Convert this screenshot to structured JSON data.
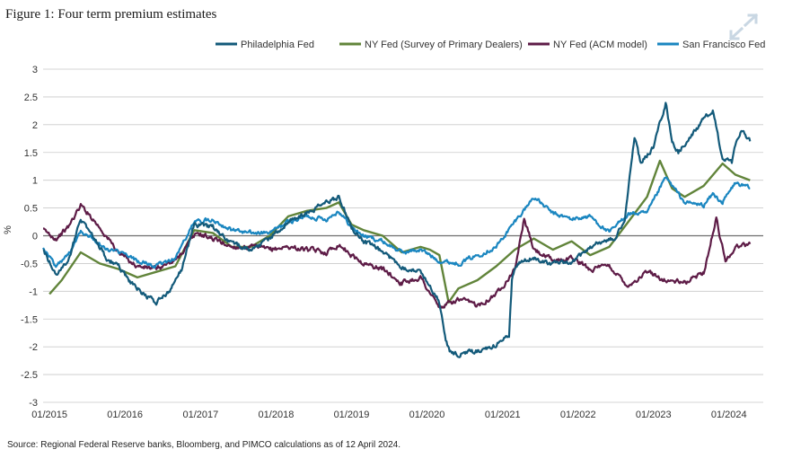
{
  "figure": {
    "title": "Figure 1: Four term premium estimates",
    "source": "Source: Regional Federal Reserve banks, Bloomberg, and PIMCO calculations as of 12 April 2024."
  },
  "icons": {
    "expand": "expand-arrows-icon"
  },
  "colors": {
    "philadelphia": "#135a7a",
    "nysurvey": "#61843a",
    "acm": "#5e1c47",
    "sf": "#1a86c0",
    "grid": "#c9c9c9",
    "zero": "#6e6e6e"
  },
  "chart_data": {
    "type": "line",
    "title": "Figure 1: Four term premium estimates",
    "xlabel": "",
    "ylabel": "%",
    "ylim": [
      -3,
      3
    ],
    "xlim": [
      "2014-12-01",
      "2024-06-15"
    ],
    "yticks": [
      3,
      2.5,
      2,
      1.5,
      1,
      0.5,
      0,
      -0.5,
      -1,
      -1.5,
      -2,
      -2.5,
      -3
    ],
    "ytick_labels": [
      "3",
      "2.5",
      "2",
      "1.5",
      "1",
      "0.5",
      "0",
      "-0.5",
      "-1",
      "-1.5",
      "-2",
      "-2.5",
      "-3"
    ],
    "xticks": [
      "2015-01-01",
      "2016-01-01",
      "2017-01-01",
      "2018-01-01",
      "2019-01-01",
      "2020-01-01",
      "2021-01-01",
      "2022-01-01",
      "2023-01-01",
      "2024-01-01"
    ],
    "xtick_labels": [
      "01/2015",
      "01/2016",
      "01/2017",
      "01/2018",
      "01/2019",
      "01/2020",
      "01/2021",
      "01/2022",
      "01/2023",
      "01/2024"
    ],
    "grid": "horizontal",
    "legend_position": "top-right",
    "series": [
      {
        "key": "philadelphia",
        "name": "Philadelphia Fed",
        "points": [
          [
            "2014-12-01",
            -0.25
          ],
          [
            "2015-02-01",
            -0.7
          ],
          [
            "2015-04-01",
            -0.45
          ],
          [
            "2015-06-01",
            0.3
          ],
          [
            "2015-08-01",
            0.0
          ],
          [
            "2015-10-01",
            -0.4
          ],
          [
            "2015-12-01",
            -0.55
          ],
          [
            "2016-02-01",
            -0.85
          ],
          [
            "2016-04-01",
            -1.05
          ],
          [
            "2016-06-01",
            -1.2
          ],
          [
            "2016-08-01",
            -1.0
          ],
          [
            "2016-10-01",
            -0.6
          ],
          [
            "2016-12-01",
            0.2
          ],
          [
            "2017-03-01",
            0.15
          ],
          [
            "2017-06-01",
            -0.15
          ],
          [
            "2017-09-01",
            -0.25
          ],
          [
            "2017-12-01",
            -0.05
          ],
          [
            "2018-03-01",
            0.25
          ],
          [
            "2018-06-01",
            0.4
          ],
          [
            "2018-09-01",
            0.6
          ],
          [
            "2018-11-01",
            0.7
          ],
          [
            "2019-01-01",
            0.15
          ],
          [
            "2019-03-01",
            -0.1
          ],
          [
            "2019-06-01",
            -0.3
          ],
          [
            "2019-09-01",
            -0.55
          ],
          [
            "2019-12-01",
            -0.65
          ],
          [
            "2020-02-01",
            -1.0
          ],
          [
            "2020-03-01",
            -1.2
          ],
          [
            "2020-04-01",
            -1.9
          ],
          [
            "2020-05-01",
            -2.15
          ],
          [
            "2020-08-01",
            -2.1
          ],
          [
            "2020-11-01",
            -2.05
          ],
          [
            "2020-12-15",
            -1.9
          ],
          [
            "2021-02-01",
            -1.8
          ],
          [
            "2021-02-15",
            -0.8
          ],
          [
            "2021-03-15",
            -0.5
          ],
          [
            "2021-06-01",
            -0.4
          ],
          [
            "2021-09-01",
            -0.5
          ],
          [
            "2021-12-01",
            -0.5
          ],
          [
            "2022-03-01",
            -0.2
          ],
          [
            "2022-05-01",
            -0.1
          ],
          [
            "2022-07-01",
            -0.05
          ],
          [
            "2022-08-15",
            0.3
          ],
          [
            "2022-10-01",
            1.8
          ],
          [
            "2022-11-01",
            1.3
          ],
          [
            "2023-01-01",
            1.6
          ],
          [
            "2023-03-01",
            2.4
          ],
          [
            "2023-04-01",
            1.7
          ],
          [
            "2023-05-01",
            1.5
          ],
          [
            "2023-07-01",
            1.8
          ],
          [
            "2023-09-01",
            2.1
          ],
          [
            "2023-10-15",
            2.25
          ],
          [
            "2023-12-01",
            1.4
          ],
          [
            "2024-01-15",
            1.3
          ],
          [
            "2024-02-01",
            1.6
          ],
          [
            "2024-03-01",
            1.9
          ],
          [
            "2024-04-12",
            1.7
          ]
        ]
      },
      {
        "key": "nysurvey",
        "name": "NY Fed (Survey of Primary Dealers)",
        "points": [
          [
            "2015-01-01",
            -1.05
          ],
          [
            "2015-03-01",
            -0.8
          ],
          [
            "2015-06-01",
            -0.3
          ],
          [
            "2015-09-01",
            -0.5
          ],
          [
            "2015-12-01",
            -0.6
          ],
          [
            "2016-03-01",
            -0.75
          ],
          [
            "2016-06-01",
            -0.65
          ],
          [
            "2016-09-01",
            -0.55
          ],
          [
            "2016-12-01",
            0.1
          ],
          [
            "2017-03-01",
            0.05
          ],
          [
            "2017-06-01",
            -0.2
          ],
          [
            "2017-09-01",
            -0.2
          ],
          [
            "2017-12-01",
            0.0
          ],
          [
            "2018-03-01",
            0.35
          ],
          [
            "2018-06-01",
            0.45
          ],
          [
            "2018-09-01",
            0.5
          ],
          [
            "2018-11-01",
            0.6
          ],
          [
            "2019-01-01",
            0.2
          ],
          [
            "2019-03-01",
            0.1
          ],
          [
            "2019-06-01",
            0.0
          ],
          [
            "2019-09-01",
            -0.3
          ],
          [
            "2019-12-01",
            -0.2
          ],
          [
            "2020-01-15",
            -0.25
          ],
          [
            "2020-03-01",
            -0.35
          ],
          [
            "2020-04-15",
            -1.2
          ],
          [
            "2020-06-01",
            -0.95
          ],
          [
            "2020-09-01",
            -0.8
          ],
          [
            "2020-12-01",
            -0.55
          ],
          [
            "2021-03-01",
            -0.25
          ],
          [
            "2021-06-01",
            -0.05
          ],
          [
            "2021-09-01",
            -0.25
          ],
          [
            "2021-12-01",
            -0.1
          ],
          [
            "2022-03-01",
            -0.35
          ],
          [
            "2022-06-01",
            -0.2
          ],
          [
            "2022-09-01",
            0.25
          ],
          [
            "2022-12-01",
            0.7
          ],
          [
            "2023-02-01",
            1.35
          ],
          [
            "2023-04-01",
            0.85
          ],
          [
            "2023-06-01",
            0.7
          ],
          [
            "2023-09-01",
            0.9
          ],
          [
            "2023-12-01",
            1.3
          ],
          [
            "2024-02-01",
            1.1
          ],
          [
            "2024-04-12",
            1.0
          ]
        ]
      },
      {
        "key": "acm",
        "name": "NY Fed (ACM model)",
        "points": [
          [
            "2014-12-01",
            0.1
          ],
          [
            "2015-02-01",
            -0.05
          ],
          [
            "2015-04-01",
            0.15
          ],
          [
            "2015-06-01",
            0.55
          ],
          [
            "2015-08-01",
            0.3
          ],
          [
            "2015-10-01",
            0.0
          ],
          [
            "2015-12-01",
            -0.3
          ],
          [
            "2016-03-01",
            -0.55
          ],
          [
            "2016-06-01",
            -0.6
          ],
          [
            "2016-09-01",
            -0.45
          ],
          [
            "2016-11-01",
            -0.15
          ],
          [
            "2016-12-15",
            0.05
          ],
          [
            "2017-03-01",
            -0.05
          ],
          [
            "2017-06-01",
            -0.2
          ],
          [
            "2017-09-01",
            -0.2
          ],
          [
            "2017-12-01",
            -0.25
          ],
          [
            "2018-03-01",
            -0.2
          ],
          [
            "2018-06-01",
            -0.25
          ],
          [
            "2018-09-01",
            -0.3
          ],
          [
            "2018-11-01",
            -0.15
          ],
          [
            "2019-01-01",
            -0.35
          ],
          [
            "2019-03-01",
            -0.5
          ],
          [
            "2019-06-01",
            -0.6
          ],
          [
            "2019-09-01",
            -0.85
          ],
          [
            "2019-12-01",
            -0.75
          ],
          [
            "2020-03-01",
            -1.3
          ],
          [
            "2020-06-01",
            -1.15
          ],
          [
            "2020-09-01",
            -1.25
          ],
          [
            "2020-12-01",
            -1.05
          ],
          [
            "2021-03-01",
            -0.6
          ],
          [
            "2021-04-15",
            0.3
          ],
          [
            "2021-06-01",
            -0.25
          ],
          [
            "2021-09-01",
            -0.45
          ],
          [
            "2021-12-01",
            -0.4
          ],
          [
            "2022-03-01",
            -0.6
          ],
          [
            "2022-06-01",
            -0.55
          ],
          [
            "2022-09-01",
            -0.9
          ],
          [
            "2022-12-01",
            -0.65
          ],
          [
            "2023-03-01",
            -0.8
          ],
          [
            "2023-06-01",
            -0.85
          ],
          [
            "2023-09-01",
            -0.65
          ],
          [
            "2023-11-01",
            0.3
          ],
          [
            "2023-12-15",
            -0.45
          ],
          [
            "2024-02-01",
            -0.2
          ],
          [
            "2024-04-12",
            -0.15
          ]
        ]
      },
      {
        "key": "sf",
        "name": "San Francisco Fed",
        "points": [
          [
            "2014-12-01",
            -0.2
          ],
          [
            "2015-02-01",
            -0.55
          ],
          [
            "2015-04-01",
            -0.35
          ],
          [
            "2015-06-01",
            0.1
          ],
          [
            "2015-08-01",
            -0.05
          ],
          [
            "2015-10-01",
            -0.25
          ],
          [
            "2015-12-01",
            -0.3
          ],
          [
            "2016-03-01",
            -0.45
          ],
          [
            "2016-06-01",
            -0.55
          ],
          [
            "2016-09-01",
            -0.4
          ],
          [
            "2016-12-01",
            0.25
          ],
          [
            "2017-03-01",
            0.3
          ],
          [
            "2017-06-01",
            0.1
          ],
          [
            "2017-09-01",
            0.05
          ],
          [
            "2017-12-01",
            0.05
          ],
          [
            "2018-03-01",
            0.25
          ],
          [
            "2018-06-01",
            0.35
          ],
          [
            "2018-09-01",
            0.3
          ],
          [
            "2018-11-01",
            0.45
          ],
          [
            "2019-01-01",
            0.15
          ],
          [
            "2019-03-01",
            0.0
          ],
          [
            "2019-06-01",
            -0.1
          ],
          [
            "2019-09-01",
            -0.3
          ],
          [
            "2019-12-01",
            -0.25
          ],
          [
            "2020-03-01",
            -0.45
          ],
          [
            "2020-06-01",
            -0.5
          ],
          [
            "2020-09-01",
            -0.35
          ],
          [
            "2020-12-01",
            -0.2
          ],
          [
            "2021-03-01",
            0.25
          ],
          [
            "2021-06-01",
            0.7
          ],
          [
            "2021-09-01",
            0.4
          ],
          [
            "2021-12-01",
            0.3
          ],
          [
            "2022-03-01",
            0.35
          ],
          [
            "2022-06-01",
            0.05
          ],
          [
            "2022-09-01",
            0.4
          ],
          [
            "2022-12-01",
            0.4
          ],
          [
            "2023-03-01",
            1.05
          ],
          [
            "2023-06-01",
            0.6
          ],
          [
            "2023-09-01",
            0.55
          ],
          [
            "2023-10-15",
            0.75
          ],
          [
            "2023-12-01",
            0.6
          ],
          [
            "2024-02-01",
            0.95
          ],
          [
            "2024-04-12",
            0.85
          ]
        ]
      }
    ]
  }
}
